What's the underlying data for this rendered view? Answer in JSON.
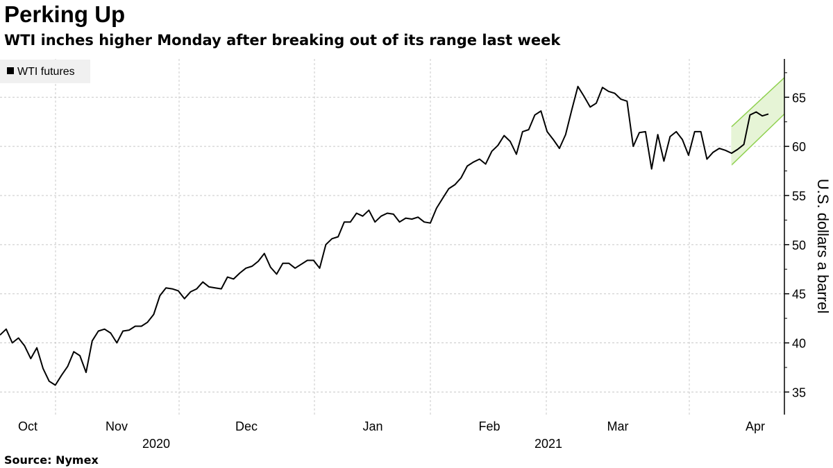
{
  "title": "Perking Up",
  "subtitle": "WTI inches higher Monday after breaking out of its range last week",
  "source": "Source: Nymex",
  "chart_data": {
    "type": "line",
    "ylabel": "U.S. dollars a barrel",
    "ylim": [
      32.7,
      68.9
    ],
    "y_ticks": [
      35,
      40,
      45,
      50,
      55,
      60,
      65
    ],
    "y_tick_labels": [
      "35",
      "40",
      "45",
      "50",
      "55",
      "60",
      "65"
    ],
    "x_month_labels": [
      "Oct",
      "Nov",
      "Dec",
      "Jan",
      "Feb",
      "Mar",
      "Apr"
    ],
    "x_year_labels": [
      "2020",
      "2021"
    ],
    "grid": true,
    "legend_position": "top-left",
    "colors": {
      "line": "#000000",
      "channel_stroke": "#8fd14f",
      "channel_fill": "#e6f4d6",
      "grid": "#c8c8c8",
      "legend_bg": "#f0f0f0"
    },
    "series": [
      {
        "name": "WTI futures",
        "values": [
          40.8,
          41.4,
          40.0,
          40.5,
          39.7,
          38.4,
          39.5,
          37.4,
          36.1,
          35.7,
          36.7,
          37.6,
          39.1,
          38.7,
          37.0,
          40.2,
          41.2,
          41.4,
          41.0,
          40.0,
          41.2,
          41.3,
          41.7,
          41.7,
          42.1,
          42.9,
          44.8,
          45.6,
          45.5,
          45.3,
          44.5,
          45.2,
          45.5,
          46.2,
          45.7,
          45.6,
          45.5,
          46.7,
          46.5,
          47.1,
          47.6,
          47.8,
          48.3,
          49.1,
          47.7,
          47.0,
          48.1,
          48.1,
          47.6,
          48.0,
          48.4,
          48.4,
          47.6,
          50.0,
          50.6,
          50.8,
          52.3,
          52.3,
          53.2,
          52.9,
          53.5,
          52.3,
          52.9,
          53.2,
          53.1,
          52.3,
          52.7,
          52.6,
          52.8,
          52.3,
          52.2,
          53.7,
          54.7,
          55.7,
          56.1,
          56.8,
          58.0,
          58.4,
          58.7,
          58.2,
          59.5,
          60.1,
          61.1,
          60.5,
          59.2,
          61.5,
          61.7,
          63.2,
          63.6,
          61.5,
          60.7,
          59.8,
          61.2,
          63.7,
          66.1,
          65.1,
          64.0,
          64.4,
          66.0,
          65.6,
          65.4,
          64.8,
          64.6,
          60.0,
          61.4,
          61.5,
          57.7,
          61.2,
          58.5,
          61.0,
          61.5,
          60.7,
          59.1,
          61.5,
          61.5,
          58.7,
          59.4,
          59.8,
          59.6,
          59.3,
          59.7,
          60.2,
          63.2,
          63.5,
          63.1,
          63.3
        ]
      }
    ],
    "annotations": [
      {
        "type": "channel",
        "upper": [
          62.0,
          67.0
        ],
        "lower": [
          58.1,
          63.3
        ],
        "start_index": 119
      }
    ]
  }
}
